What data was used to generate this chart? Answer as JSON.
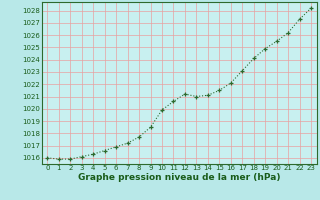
{
  "x": [
    0,
    1,
    2,
    3,
    4,
    5,
    6,
    7,
    8,
    9,
    10,
    11,
    12,
    13,
    14,
    15,
    16,
    17,
    18,
    19,
    20,
    21,
    22,
    23
  ],
  "y": [
    1016.0,
    1015.9,
    1015.9,
    1016.1,
    1016.3,
    1016.6,
    1016.9,
    1017.2,
    1017.7,
    1018.5,
    1019.9,
    1020.6,
    1021.2,
    1021.0,
    1021.1,
    1021.5,
    1022.1,
    1023.1,
    1024.1,
    1024.9,
    1025.5,
    1026.2,
    1027.3,
    1028.2
  ],
  "line_color": "#2d6a2d",
  "marker": "+",
  "marker_size": 3.5,
  "line_width": 0.8,
  "background_color": "#b8e8e8",
  "plot_bg_color": "#c8f0f0",
  "grid_color": "#e8a0a0",
  "xlabel": "Graphe pression niveau de la mer (hPa)",
  "xlabel_fontsize": 6.5,
  "xlabel_color": "#1a5c1a",
  "xlabel_bold": true,
  "ylim": [
    1015.5,
    1028.7
  ],
  "xlim": [
    -0.5,
    23.5
  ],
  "yticks": [
    1016,
    1017,
    1018,
    1019,
    1020,
    1021,
    1022,
    1023,
    1024,
    1025,
    1026,
    1027,
    1028
  ],
  "xticks": [
    0,
    1,
    2,
    3,
    4,
    5,
    6,
    7,
    8,
    9,
    10,
    11,
    12,
    13,
    14,
    15,
    16,
    17,
    18,
    19,
    20,
    21,
    22,
    23
  ],
  "tick_fontsize": 5.0,
  "tick_color": "#1a5c1a",
  "spine_color": "#2d6a2d"
}
